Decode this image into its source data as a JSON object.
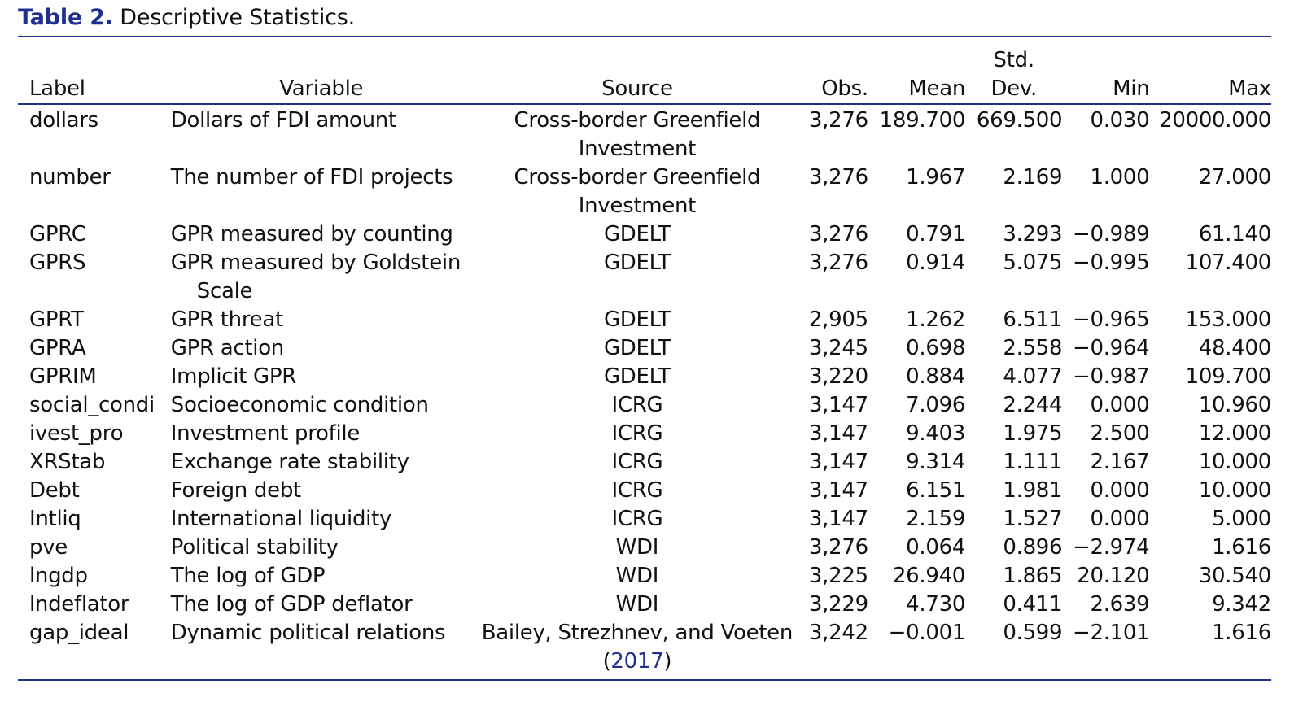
{
  "caption": {
    "label": "Table 2.",
    "title": "Descriptive Statistics."
  },
  "colors": {
    "accent": "#1f2f8f",
    "text": "#111111"
  },
  "headers": {
    "label": "Label",
    "variable": "Variable",
    "source": "Source",
    "obs": "Obs.",
    "mean": "Mean",
    "std_line1": "Std.",
    "std_line2": "Dev.",
    "min": "Min",
    "max": "Max"
  },
  "rows": [
    {
      "label": "dollars",
      "variable": "Dollars of FDI amount",
      "source_line1": "Cross-border Greenfield",
      "source_line2": "Investment",
      "obs": "3,276",
      "mean": "189.700",
      "std": "669.500",
      "min": "0.030",
      "max": "20000.000"
    },
    {
      "label": "number",
      "variable": "The number of FDI projects",
      "source_line1": "Cross-border Greenfield",
      "source_line2": "Investment",
      "obs": "3,276",
      "mean": "1.967",
      "std": "2.169",
      "min": "1.000",
      "max": "27.000"
    },
    {
      "label": "GPRC",
      "variable": "GPR measured by counting",
      "source_line1": "GDELT",
      "obs": "3,276",
      "mean": "0.791",
      "std": "3.293",
      "min": "−0.989",
      "max": "61.140"
    },
    {
      "label": "GPRS",
      "variable": "GPR measured by Goldstein",
      "variable_line2": "Scale",
      "source_line1": "GDELT",
      "obs": "3,276",
      "mean": "0.914",
      "std": "5.075",
      "min": "−0.995",
      "max": "107.400"
    },
    {
      "label": "GPRT",
      "variable": "GPR threat",
      "source_line1": "GDELT",
      "obs": "2,905",
      "mean": "1.262",
      "std": "6.511",
      "min": "−0.965",
      "max": "153.000"
    },
    {
      "label": "GPRA",
      "variable": "GPR action",
      "source_line1": "GDELT",
      "obs": "3,245",
      "mean": "0.698",
      "std": "2.558",
      "min": "−0.964",
      "max": "48.400"
    },
    {
      "label": "GPRIM",
      "variable": "Implicit GPR",
      "source_line1": "GDELT",
      "obs": "3,220",
      "mean": "0.884",
      "std": "4.077",
      "min": "−0.987",
      "max": "109.700"
    },
    {
      "label": "social_condi",
      "variable": "Socioeconomic condition",
      "source_line1": "ICRG",
      "obs": "3,147",
      "mean": "7.096",
      "std": "2.244",
      "min": "0.000",
      "max": "10.960"
    },
    {
      "label": "ivest_pro",
      "variable": "Investment profile",
      "source_line1": "ICRG",
      "obs": "3,147",
      "mean": "9.403",
      "std": "1.975",
      "min": "2.500",
      "max": "12.000"
    },
    {
      "label": "XRStab",
      "variable": "Exchange rate stability",
      "source_line1": "ICRG",
      "obs": "3,147",
      "mean": "9.314",
      "std": "1.111",
      "min": "2.167",
      "max": "10.000"
    },
    {
      "label": "Debt",
      "variable": "Foreign debt",
      "source_line1": "ICRG",
      "obs": "3,147",
      "mean": "6.151",
      "std": "1.981",
      "min": "0.000",
      "max": "10.000"
    },
    {
      "label": "Intliq",
      "variable": "International liquidity",
      "source_line1": "ICRG",
      "obs": "3,147",
      "mean": "2.159",
      "std": "1.527",
      "min": "0.000",
      "max": "5.000"
    },
    {
      "label": "pve",
      "variable": "Political stability",
      "source_line1": "WDI",
      "obs": "3,276",
      "mean": "0.064",
      "std": "0.896",
      "min": "−2.974",
      "max": "1.616"
    },
    {
      "label": "lngdp",
      "variable": "The log of GDP",
      "source_line1": "WDI",
      "obs": "3,225",
      "mean": "26.940",
      "std": "1.865",
      "min": "20.120",
      "max": "30.540"
    },
    {
      "label": "lndeflator",
      "variable": "The log of GDP deflator",
      "source_line1": "WDI",
      "obs": "3,229",
      "mean": "4.730",
      "std": "0.411",
      "min": "2.639",
      "max": "9.342"
    },
    {
      "label": "gap_ideal",
      "variable": "Dynamic political relations",
      "source_line1": "Bailey, Strezhnev, and Voeten",
      "source_ref_open": "(",
      "source_ref": "2017",
      "source_ref_close": ")",
      "obs": "3,242",
      "mean": "−0.001",
      "std": "0.599",
      "min": "−2.101",
      "max": "1.616"
    }
  ]
}
